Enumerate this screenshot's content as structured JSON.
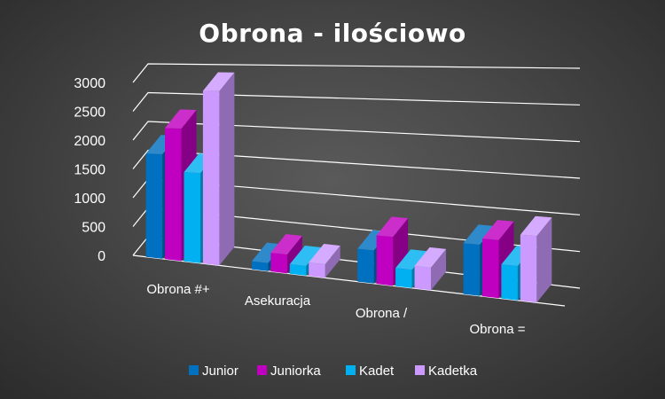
{
  "chart_data": {
    "type": "bar",
    "title": "Obrona - ilościowo",
    "xlabel": "",
    "ylabel": "",
    "categories": [
      "Obrona #+",
      "Asekuracja",
      "Obrona /",
      "Obrona ="
    ],
    "series": [
      {
        "name": "Junior",
        "color": "#0070c0",
        "values": [
          1780,
          130,
          500,
          730
        ]
      },
      {
        "name": "Juniorka",
        "color": "#c000c0",
        "values": [
          2230,
          300,
          730,
          820
        ]
      },
      {
        "name": "Kadet",
        "color": "#00b0f0",
        "values": [
          1500,
          150,
          270,
          480
        ]
      },
      {
        "name": "Kadetka",
        "color": "#cc99ff",
        "values": [
          2870,
          210,
          330,
          920
        ]
      }
    ],
    "ylim": [
      0,
      3000
    ],
    "yticks": [
      "0",
      "500",
      "1000",
      "1500",
      "2000",
      "2500",
      "3000"
    ],
    "grid": true,
    "legend": "bottom"
  }
}
